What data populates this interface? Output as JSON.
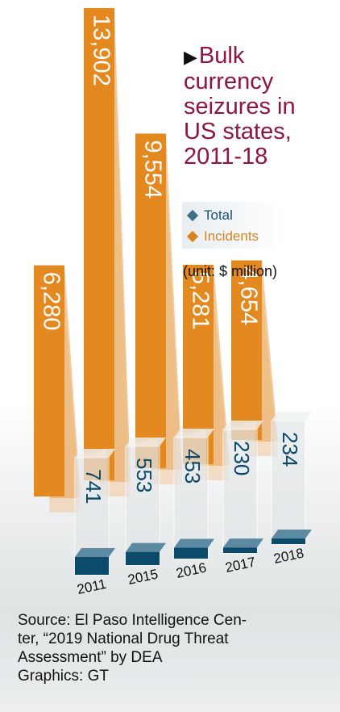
{
  "title_arrow": "▶",
  "title_lines": [
    "Bulk",
    "currency",
    "seizures in",
    "US states,",
    "2011-18"
  ],
  "legend": {
    "total_label": "Total",
    "incidents_label": "Incidents"
  },
  "unit": "(unit: $ million)",
  "source_lines": [
    "Source: El Paso Intelligence Cen-",
    "ter, “2019 National Drug Threat",
    "Assessment” by DEA",
    "Graphics: GT"
  ],
  "colors": {
    "title": "#8e1446",
    "orange": "#e3891f",
    "navy": "#0b4a6b",
    "legend_total": "#3f6e87",
    "legend_incidents": "#d9831f",
    "legend_text": "#12506f",
    "glass": "#dde1e3"
  },
  "chart_data": {
    "type": "bar",
    "categories": [
      "2011",
      "2015",
      "2016",
      "2017",
      "2018"
    ],
    "series": [
      {
        "name": "Total",
        "values": [
          6280,
          13902,
          9554,
          5281,
          4654
        ],
        "labels": [
          "6,280",
          "13,902",
          "9,554",
          "5,281",
          "4,654"
        ]
      },
      {
        "name": "Incidents",
        "values": [
          741,
          553,
          453,
          230,
          234
        ],
        "labels": [
          "741",
          "553",
          "453",
          "230",
          "234"
        ]
      }
    ],
    "unit": "$ million"
  }
}
